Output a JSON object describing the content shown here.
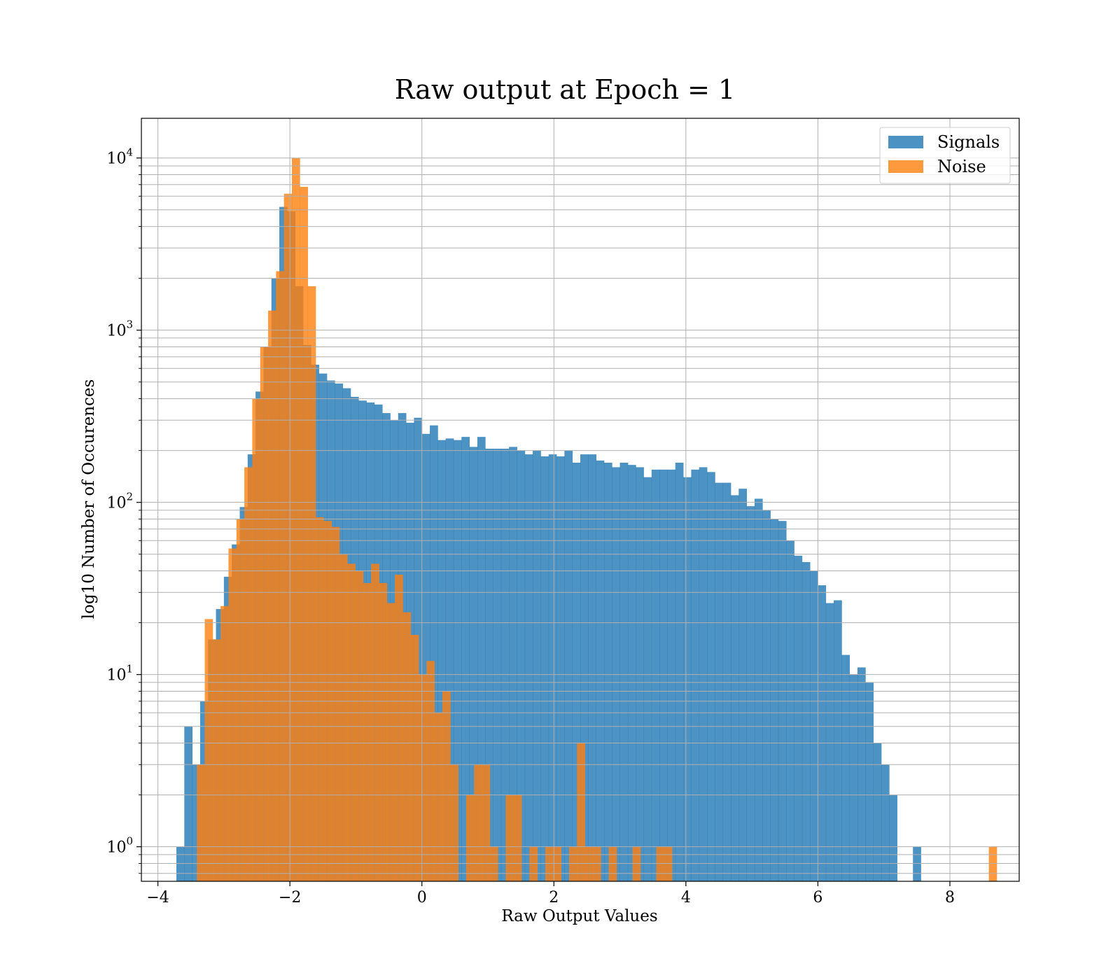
{
  "chart_data": {
    "type": "bar",
    "title": "Raw output at Epoch = 1",
    "xlabel": "Raw Output Values",
    "ylabel": "log10 Number of Occurences",
    "xlim": [
      -4.25,
      9.05
    ],
    "ylim": [
      0.63,
      17000
    ],
    "yscale": "log",
    "grid": true,
    "legend_position": "top-right",
    "x_ticks": [
      -4,
      -2,
      0,
      2,
      4,
      6,
      8
    ],
    "y_ticks": [
      1,
      10,
      100,
      1000,
      10000
    ],
    "series": [
      {
        "name": "Signals",
        "color": "#1f77b4",
        "alpha": 0.8,
        "bin_start": -3.72,
        "bin_width": 0.12,
        "values": [
          1,
          5,
          3,
          7,
          16,
          24,
          37,
          57,
          94,
          190,
          440,
          800,
          2000,
          5200,
          4900,
          1800,
          820,
          630,
          560,
          510,
          490,
          460,
          410,
          390,
          380,
          370,
          330,
          300,
          330,
          290,
          310,
          250,
          280,
          230,
          235,
          230,
          240,
          210,
          240,
          205,
          205,
          205,
          210,
          200,
          190,
          200,
          185,
          190,
          185,
          200,
          170,
          190,
          190,
          175,
          170,
          160,
          170,
          165,
          160,
          140,
          155,
          155,
          155,
          170,
          140,
          155,
          160,
          150,
          130,
          130,
          110,
          120,
          95,
          105,
          90,
          80,
          78,
          60,
          49,
          45,
          40,
          33,
          26,
          27,
          13,
          10,
          11,
          9,
          4,
          3,
          2,
          0,
          0,
          1,
          0,
          0,
          0,
          0,
          0,
          0,
          0,
          0,
          0,
          0,
          0
        ]
      },
      {
        "name": "Noise",
        "color": "#ff7f0e",
        "alpha": 0.8,
        "bin_start": -3.41,
        "bin_width": 0.12,
        "values": [
          3,
          21,
          16,
          25,
          54,
          80,
          160,
          400,
          800,
          1300,
          2200,
          6200,
          10000,
          6800,
          1800,
          82,
          78,
          72,
          50,
          44,
          40,
          34,
          44,
          34,
          26,
          38,
          23,
          17,
          10,
          12,
          6,
          8,
          3,
          0,
          2,
          3,
          3,
          1,
          0,
          2,
          2,
          0,
          1,
          0,
          1,
          1,
          0,
          1,
          4,
          1,
          1,
          0,
          1,
          0,
          0,
          1,
          0,
          0,
          1,
          1,
          0,
          0,
          0,
          0,
          0,
          0,
          0,
          0,
          0,
          0,
          0,
          0,
          0,
          0,
          0,
          0,
          0,
          0,
          0,
          0,
          0,
          0,
          0,
          0,
          0,
          0,
          0,
          0,
          0,
          0,
          0,
          0,
          0,
          0,
          0,
          0,
          0,
          0,
          0,
          0,
          1
        ]
      }
    ]
  }
}
